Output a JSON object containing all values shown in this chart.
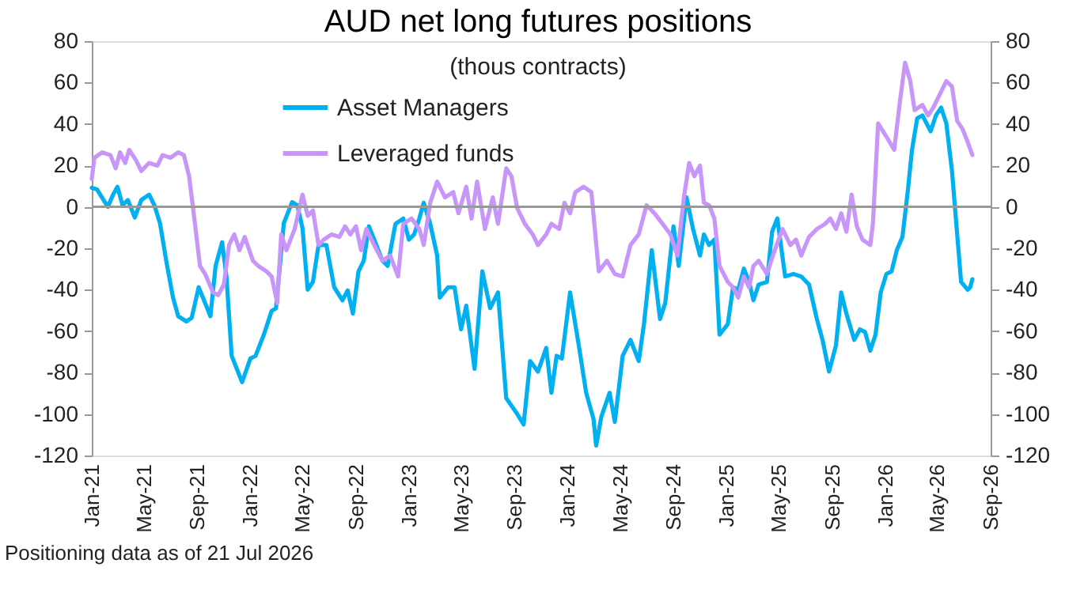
{
  "chart_data": {
    "type": "line",
    "title": "AUD net long futures positions",
    "subtitle": "(thous contracts)",
    "annotations": [
      "Positioning data as of 21 Jul 2026"
    ],
    "xlim": [
      "2021-01-01",
      "2026-09-01"
    ],
    "xticks": [
      {
        "value": "2021-01-01",
        "label": "Jan-21"
      },
      {
        "value": "2021-05-01",
        "label": "May-21"
      },
      {
        "value": "2021-09-01",
        "label": "Sep-21"
      },
      {
        "value": "2022-01-01",
        "label": "Jan-22"
      },
      {
        "value": "2022-05-01",
        "label": "May-22"
      },
      {
        "value": "2022-09-01",
        "label": "Sep-22"
      },
      {
        "value": "2023-01-01",
        "label": "Jan-23"
      },
      {
        "value": "2023-05-01",
        "label": "May-23"
      },
      {
        "value": "2023-09-01",
        "label": "Sep-23"
      },
      {
        "value": "2024-01-01",
        "label": "Jan-24"
      },
      {
        "value": "2024-05-01",
        "label": "May-24"
      },
      {
        "value": "2024-09-01",
        "label": "Sep-24"
      },
      {
        "value": "2025-01-01",
        "label": "Jan-25"
      },
      {
        "value": "2025-05-01",
        "label": "May-25"
      },
      {
        "value": "2025-09-01",
        "label": "Sep-25"
      },
      {
        "value": "2026-01-01",
        "label": "Jan-26"
      },
      {
        "value": "2026-05-01",
        "label": "May-26"
      },
      {
        "value": "2026-09-01",
        "label": "Sep-26"
      }
    ],
    "ylim": [
      -120,
      80
    ],
    "yticks": [
      -120,
      -100,
      -80,
      -60,
      -40,
      -20,
      0,
      20,
      40,
      60,
      80
    ],
    "y2lim": [
      -120,
      80
    ],
    "y2ticks": [
      -120,
      -100,
      -80,
      -60,
      -40,
      -20,
      0,
      20,
      40,
      60,
      80
    ],
    "ref_lines": [
      {
        "axis": "y",
        "value": 0,
        "color": "#999999"
      }
    ],
    "grid": false,
    "legend": "top",
    "marker": "none",
    "line_style": "solid",
    "series": [
      {
        "name": "Asset Managers",
        "color": "#00b0f0",
        "x": [
          "2021-01-01",
          "2021-01-13",
          "2021-02-07",
          "2021-02-19",
          "2021-03-01",
          "2021-03-13",
          "2021-03-25",
          "2021-04-10",
          "2021-04-25",
          "2021-05-13",
          "2021-05-25",
          "2021-06-07",
          "2021-06-22",
          "2021-07-07",
          "2021-07-19",
          "2021-08-07",
          "2021-08-19",
          "2021-09-04",
          "2021-09-19",
          "2021-10-01",
          "2021-10-13",
          "2021-10-28",
          "2021-11-07",
          "2021-11-19",
          "2021-12-13",
          "2022-01-01",
          "2022-01-13",
          "2022-02-01",
          "2022-02-19",
          "2022-03-01",
          "2022-03-19",
          "2022-04-07",
          "2022-04-19",
          "2022-05-01",
          "2022-05-13",
          "2022-05-25",
          "2022-06-07",
          "2022-06-25",
          "2022-07-13",
          "2022-08-01",
          "2022-08-13",
          "2022-08-25",
          "2022-09-07",
          "2022-09-19",
          "2022-10-01",
          "2022-10-13",
          "2022-11-01",
          "2022-11-13",
          "2022-12-01",
          "2022-12-19",
          "2023-01-01",
          "2023-01-13",
          "2023-01-25",
          "2023-02-04",
          "2023-02-19",
          "2023-03-07",
          "2023-03-13",
          "2023-04-01",
          "2023-04-16",
          "2023-05-01",
          "2023-05-13",
          "2023-06-01",
          "2023-06-19",
          "2023-07-07",
          "2023-07-25",
          "2023-08-13",
          "2023-09-07",
          "2023-09-22",
          "2023-10-07",
          "2023-10-25",
          "2023-11-13",
          "2023-11-25",
          "2023-12-07",
          "2023-12-19",
          "2024-01-07",
          "2024-01-25",
          "2024-02-13",
          "2024-03-01",
          "2024-03-07",
          "2024-03-19",
          "2024-04-07",
          "2024-04-19",
          "2024-05-07",
          "2024-05-25",
          "2024-06-13",
          "2024-06-25",
          "2024-07-13",
          "2024-08-01",
          "2024-08-13",
          "2024-09-01",
          "2024-09-13",
          "2024-10-01",
          "2024-10-16",
          "2024-11-01",
          "2024-11-10",
          "2024-11-22",
          "2024-12-04",
          "2024-12-16",
          "2025-01-04",
          "2025-01-16",
          "2025-01-28",
          "2025-02-10",
          "2025-02-22",
          "2025-03-04",
          "2025-03-16",
          "2025-04-04",
          "2025-04-16",
          "2025-04-28",
          "2025-05-16",
          "2025-06-04",
          "2025-06-22",
          "2025-07-10",
          "2025-07-28",
          "2025-08-10",
          "2025-08-25",
          "2025-09-10",
          "2025-09-22",
          "2025-10-04",
          "2025-10-22",
          "2025-11-04",
          "2025-11-16",
          "2025-11-28",
          "2025-12-10",
          "2025-12-22",
          "2026-01-04",
          "2026-01-16",
          "2026-01-28",
          "2026-02-10",
          "2026-02-22",
          "2026-03-04",
          "2026-03-16",
          "2026-03-28",
          "2026-04-16",
          "2026-04-28",
          "2026-05-10",
          "2026-05-22",
          "2026-06-04",
          "2026-06-16",
          "2026-06-25",
          "2026-07-10",
          "2026-07-16",
          "2026-07-21"
        ],
        "values": [
          9.2,
          8.4,
          0,
          5.9,
          9.7,
          0.8,
          3.3,
          -5.1,
          3.3,
          5.9,
          0.8,
          -7.9,
          -26.8,
          -43.8,
          -52.8,
          -55.3,
          -53.5,
          -38.8,
          -46.4,
          -52.8,
          -28.5,
          -17.1,
          -33.6,
          -71.9,
          -84.6,
          -73.2,
          -71.9,
          -61.7,
          -50.2,
          -48.9,
          -7.9,
          2.3,
          0.8,
          -10.2,
          -40,
          -36.2,
          -18.4,
          -18.4,
          -38.8,
          -45.1,
          -40.3,
          -51.5,
          -31.1,
          -26,
          -9.4,
          -15.8,
          -26,
          -28.5,
          -8.2,
          -5.6,
          -15.8,
          -13.3,
          -5.6,
          2,
          -8.2,
          -23.5,
          -43.8,
          -38.8,
          -38.8,
          -59.1,
          -47.7,
          -78.2,
          -31.1,
          -48.9,
          -41.3,
          -92.3,
          -99.9,
          -105,
          -74.4,
          -79.5,
          -68.1,
          -89.7,
          -71.9,
          -73.2,
          -41.3,
          -64.2,
          -89.7,
          -102.5,
          -115.2,
          -101.2,
          -89.7,
          -103.8,
          -71.9,
          -64.2,
          -74.4,
          -56.6,
          -20.9,
          -54.1,
          -46.4,
          -9.4,
          -28.5,
          4.6,
          -10.7,
          -23.5,
          -13.3,
          -18.4,
          -15.8,
          -61.7,
          -56.6,
          -38.8,
          -40,
          -29.8,
          -36.2,
          -45.1,
          -37.5,
          -36.2,
          -12,
          -5.6,
          -33.6,
          -32.4,
          -33.6,
          -37.5,
          -54.1,
          -64.2,
          -79.5,
          -66.8,
          -41.3,
          -51.5,
          -64.2,
          -59.1,
          -60.4,
          -69.4,
          -61.7,
          -41.3,
          -32.4,
          -31.1,
          -20.9,
          -14.5,
          7.1,
          27.5,
          42.8,
          44.1,
          36.5,
          44.1,
          47.9,
          40.3,
          17.4,
          -13.3,
          -36.2,
          -40,
          -38.8,
          -34.9
        ]
      },
      {
        "name": "Leveraged funds",
        "color": "#c896f8",
        "x": [
          "2021-01-01",
          "2021-01-07",
          "2021-01-25",
          "2021-02-13",
          "2021-02-25",
          "2021-03-07",
          "2021-03-19",
          "2021-03-28",
          "2021-04-13",
          "2021-04-25",
          "2021-05-13",
          "2021-06-01",
          "2021-06-13",
          "2021-07-01",
          "2021-07-19",
          "2021-08-01",
          "2021-08-13",
          "2021-08-25",
          "2021-09-07",
          "2021-09-19",
          "2021-10-07",
          "2021-10-19",
          "2021-11-01",
          "2021-11-13",
          "2021-11-25",
          "2021-12-07",
          "2021-12-19",
          "2022-01-07",
          "2022-01-19",
          "2022-02-07",
          "2022-02-19",
          "2022-03-04",
          "2022-03-13",
          "2022-03-25",
          "2022-04-13",
          "2022-05-01",
          "2022-05-13",
          "2022-05-25",
          "2022-06-07",
          "2022-06-19",
          "2022-07-07",
          "2022-07-25",
          "2022-08-07",
          "2022-08-19",
          "2022-09-01",
          "2022-09-13",
          "2022-09-25",
          "2022-10-13",
          "2022-11-01",
          "2022-11-19",
          "2022-12-07",
          "2022-12-19",
          "2023-01-07",
          "2023-01-25",
          "2023-02-04",
          "2023-02-19",
          "2023-03-07",
          "2023-03-25",
          "2023-04-13",
          "2023-04-25",
          "2023-05-13",
          "2023-05-25",
          "2023-06-07",
          "2023-06-25",
          "2023-07-13",
          "2023-07-25",
          "2023-08-13",
          "2023-08-25",
          "2023-09-07",
          "2023-09-25",
          "2023-10-13",
          "2023-10-25",
          "2023-11-13",
          "2023-11-25",
          "2023-12-13",
          "2023-12-25",
          "2024-01-07",
          "2024-01-19",
          "2024-02-07",
          "2024-02-25",
          "2024-03-13",
          "2024-04-01",
          "2024-04-19",
          "2024-05-07",
          "2024-05-25",
          "2024-06-13",
          "2024-07-01",
          "2024-07-19",
          "2024-08-07",
          "2024-08-25",
          "2024-09-10",
          "2024-09-25",
          "2024-10-07",
          "2024-10-19",
          "2024-11-01",
          "2024-11-10",
          "2024-11-22",
          "2024-12-04",
          "2024-12-16",
          "2025-01-04",
          "2025-01-16",
          "2025-01-28",
          "2025-02-10",
          "2025-02-22",
          "2025-03-04",
          "2025-03-16",
          "2025-04-04",
          "2025-04-22",
          "2025-05-10",
          "2025-05-28",
          "2025-06-10",
          "2025-06-22",
          "2025-07-10",
          "2025-07-28",
          "2025-08-16",
          "2025-08-28",
          "2025-09-10",
          "2025-09-22",
          "2025-10-04",
          "2025-10-16",
          "2025-10-28",
          "2025-11-10",
          "2025-11-28",
          "2025-12-04",
          "2025-12-16",
          "2026-01-04",
          "2026-01-22",
          "2026-02-04",
          "2026-02-16",
          "2026-02-28",
          "2026-03-10",
          "2026-03-28",
          "2026-04-10",
          "2026-04-22",
          "2026-05-10",
          "2026-05-22",
          "2026-06-04",
          "2026-06-16",
          "2026-06-28",
          "2026-07-10",
          "2026-07-21"
        ],
        "values": [
          13.5,
          23.7,
          26.3,
          25,
          18.6,
          26.3,
          21.2,
          27.5,
          22.4,
          17.3,
          21.2,
          19.9,
          25,
          23.7,
          26.3,
          25,
          14.8,
          -5.6,
          -28.5,
          -32.4,
          -41.3,
          -42.6,
          -37.5,
          -18.4,
          -13.3,
          -20.9,
          -14.5,
          -26,
          -28.5,
          -31.1,
          -33.6,
          -46.4,
          -13.3,
          -20.9,
          -10.7,
          5.9,
          -4.3,
          -1.8,
          -18.4,
          -15.8,
          -13.3,
          -14.5,
          -9.4,
          -13.3,
          -9.4,
          -20.9,
          -10.7,
          -18.4,
          -26,
          -23.5,
          -33.6,
          -8.2,
          -5.6,
          -10.7,
          -18.4,
          2,
          12.2,
          4.6,
          7.1,
          -3.1,
          9.7,
          -5.6,
          12.2,
          -10.7,
          4.6,
          -8.2,
          18.6,
          14.8,
          -0.5,
          -8.2,
          -13.3,
          -18.4,
          -13.3,
          -8.2,
          -10.7,
          2,
          -3.1,
          7.1,
          9.7,
          7.1,
          -31.1,
          -26,
          -32.4,
          -33.6,
          -18.4,
          -13.3,
          0.8,
          -3.1,
          -8.2,
          -13.3,
          -23.5,
          4.6,
          21.2,
          14.8,
          19.9,
          2,
          0.8,
          -5.6,
          -28.5,
          -36.2,
          -38.8,
          -43.8,
          -33.6,
          -38.8,
          -28.5,
          -26,
          -32.4,
          -20.9,
          -10.7,
          -18.4,
          -15.8,
          -23.5,
          -14.5,
          -10.7,
          -8.2,
          -5.6,
          -10.7,
          -3.1,
          -12,
          5.9,
          -9.4,
          -15.8,
          -18.4,
          -8.2,
          40.3,
          33.9,
          27.5,
          50.5,
          69.6,
          60.7,
          46.7,
          49.2,
          44.1,
          47.9,
          55.6,
          60.7,
          58.1,
          41.5,
          37.7,
          31.4,
          25
        ]
      }
    ]
  }
}
